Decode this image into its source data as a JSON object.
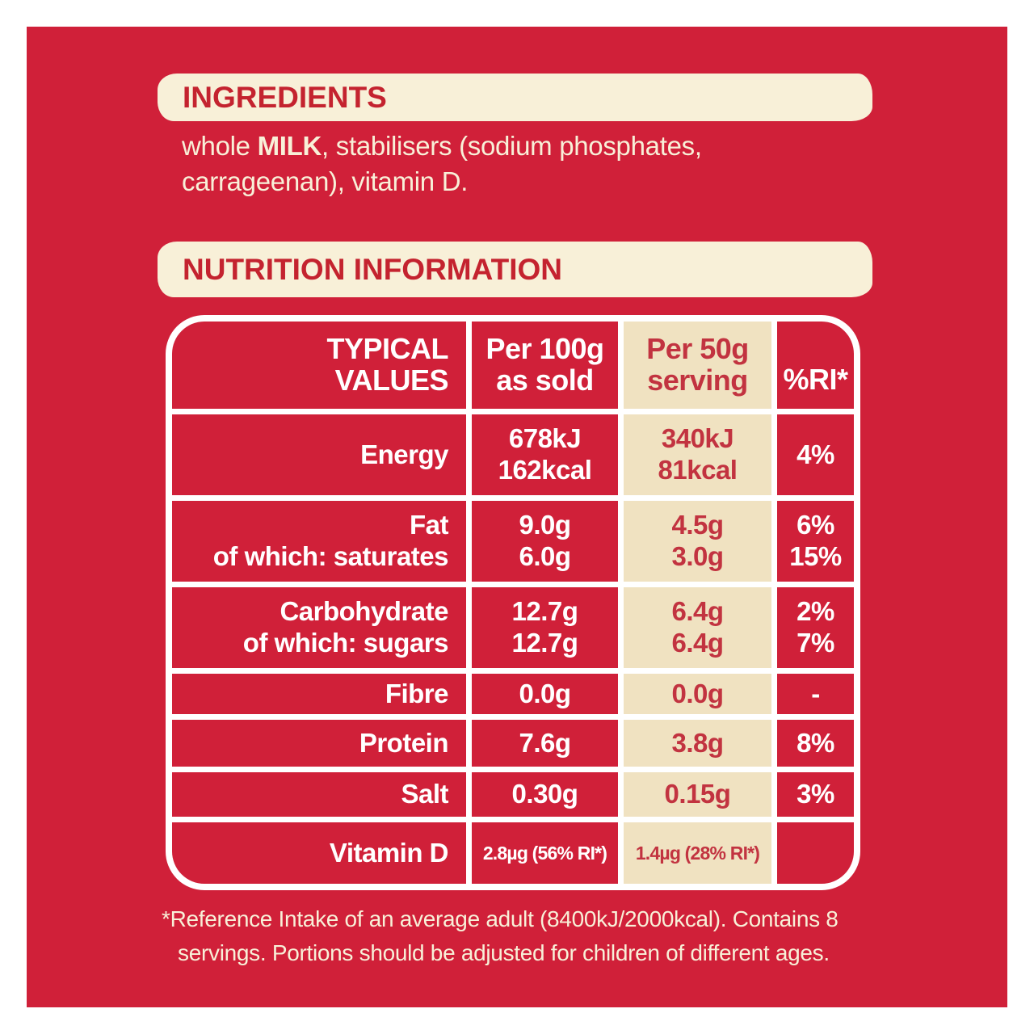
{
  "colors": {
    "frame_white": "#ffffff",
    "background_red": "#d02039",
    "banner_cream": "#f8f0d8",
    "serving_column_tan": "#f0e2c1",
    "heading_red": "#c4232f",
    "value_red": "#c23340"
  },
  "ingredients": {
    "heading": "INGREDIENTS",
    "line1_pre": "whole ",
    "line1_bold": "MILK",
    "line1_rest": ", stabilisers (sodium phosphates,",
    "line2": "carrageenan), vitamin D."
  },
  "nutrition": {
    "heading": "NUTRITION INFORMATION",
    "header": {
      "col1_line1": "TYPICAL",
      "col1_line2": "VALUES",
      "col2_line1": "Per 100g",
      "col2_line2": "as sold",
      "col3_line1": "Per 50g",
      "col3_line2": "serving",
      "col4": "%RI*"
    },
    "rows": [
      {
        "label": [
          "Energy"
        ],
        "per100": [
          "678kJ",
          "162kcal"
        ],
        "per50": [
          "340kJ",
          "81kcal"
        ],
        "ri": [
          "4%"
        ]
      },
      {
        "label": [
          "Fat",
          "of which: saturates"
        ],
        "per100": [
          "9.0g",
          "6.0g"
        ],
        "per50": [
          "4.5g",
          "3.0g"
        ],
        "ri": [
          "6%",
          "15%"
        ]
      },
      {
        "label": [
          "Carbohydrate",
          "of which: sugars"
        ],
        "per100": [
          "12.7g",
          "12.7g"
        ],
        "per50": [
          "6.4g",
          "6.4g"
        ],
        "ri": [
          "2%",
          "7%"
        ]
      },
      {
        "label": [
          "Fibre"
        ],
        "per100": [
          "0.0g"
        ],
        "per50": [
          "0.0g"
        ],
        "ri": [
          "-"
        ]
      },
      {
        "label": [
          "Protein"
        ],
        "per100": [
          "7.6g"
        ],
        "per50": [
          "3.8g"
        ],
        "ri": [
          "8%"
        ]
      },
      {
        "label": [
          "Salt"
        ],
        "per100": [
          "0.30g"
        ],
        "per50": [
          "0.15g"
        ],
        "ri": [
          "3%"
        ]
      },
      {
        "label": [
          "Vitamin D"
        ],
        "per100": [
          "2.8µg (56% RI*)"
        ],
        "per50": [
          "1.4µg (28% RI*)"
        ],
        "ri": [
          ""
        ]
      }
    ]
  },
  "footnote": {
    "line1": "*Reference Intake of an average adult (8400kJ/2000kcal). Contains 8",
    "line2": "servings. Portions should be adjusted for children of different ages."
  }
}
